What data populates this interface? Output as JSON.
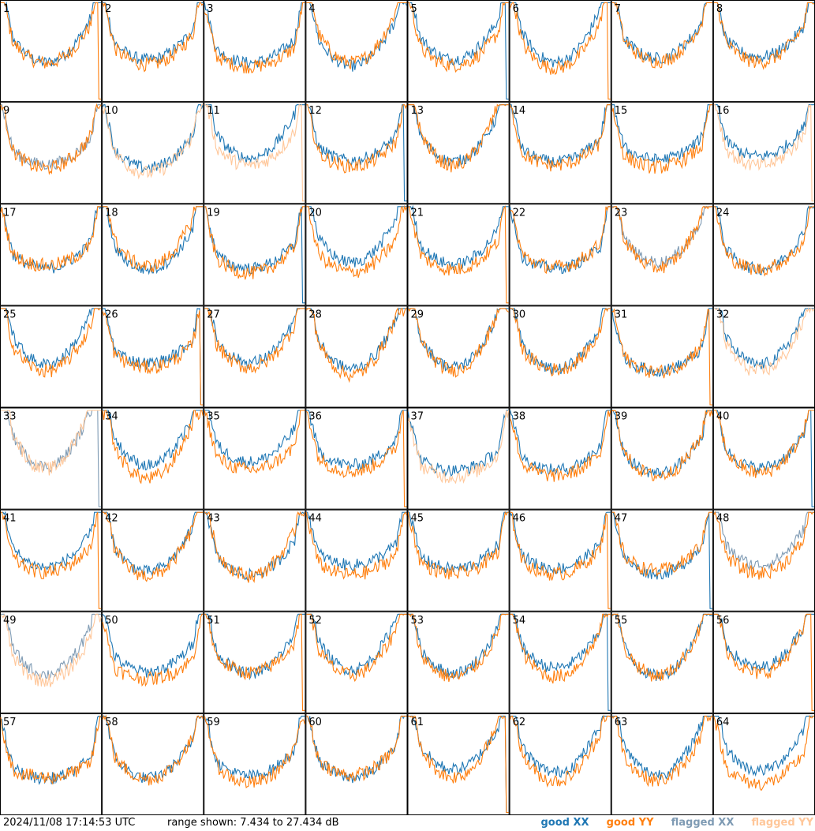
{
  "chart_data": {
    "type": "line",
    "layout": "8x8 grid of small-multiple spectra",
    "panels": [
      1,
      2,
      3,
      4,
      5,
      6,
      7,
      8,
      9,
      10,
      11,
      12,
      13,
      14,
      15,
      16,
      17,
      18,
      19,
      20,
      21,
      22,
      23,
      24,
      25,
      26,
      27,
      28,
      29,
      30,
      31,
      32,
      33,
      34,
      35,
      36,
      37,
      38,
      39,
      40,
      41,
      42,
      43,
      44,
      45,
      46,
      47,
      48,
      49,
      50,
      51,
      52,
      53,
      54,
      55,
      56,
      57,
      58,
      59,
      60,
      61,
      62,
      63,
      64
    ],
    "ylim": [
      7.434,
      27.434
    ],
    "yunits": "dB",
    "series": [
      {
        "name": "good XX",
        "color": "#1f77b4"
      },
      {
        "name": "good YY",
        "color": "#ff7f0e"
      },
      {
        "name": "flagged XX",
        "color": "#7f9bb4"
      },
      {
        "name": "flagged YY",
        "color": "#ffc79a"
      }
    ],
    "panel_states": {
      "flaggedXX": [
        9,
        23,
        33,
        48,
        49
      ],
      "flaggedYY": [
        10,
        11,
        16,
        32,
        33,
        37,
        49
      ]
    }
  },
  "footer": {
    "timestamp": "2024/11/08 17:14:53 UTC",
    "range_text": "range shown: 7.434 to 27.434 dB",
    "legend": {
      "good_xx": "good XX",
      "good_yy": "good YY",
      "flagged_xx": "flagged XX",
      "flagged_yy": "flagged YY"
    }
  },
  "colors": {
    "good_xx": "#1f77b4",
    "good_yy": "#ff7f0e",
    "flagged_xx": "#7f9bb4",
    "flagged_yy": "#ffc79a"
  }
}
